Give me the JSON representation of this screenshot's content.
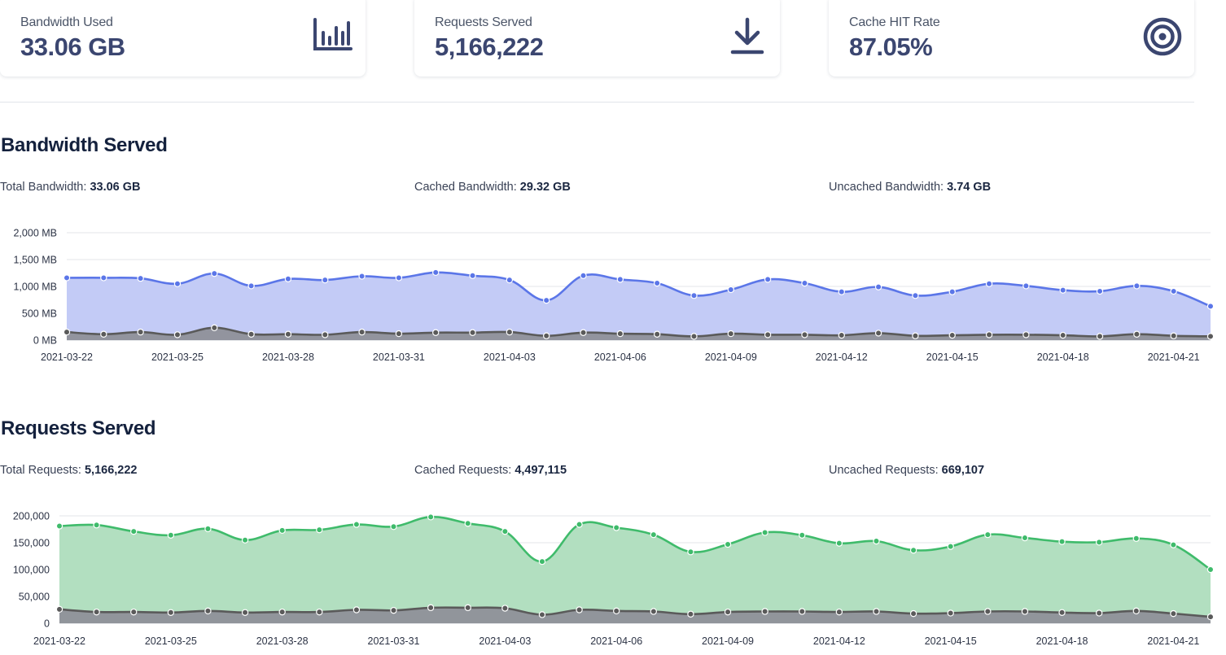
{
  "cards": [
    {
      "label": "Bandwidth Used",
      "value": "33.06 GB",
      "icon": "bar-chart-icon"
    },
    {
      "label": "Requests Served",
      "value": "5,166,222",
      "icon": "download-icon"
    },
    {
      "label": "Cache HIT Rate",
      "value": "87.05%",
      "icon": "target-icon"
    }
  ],
  "bandwidth": {
    "title": "Bandwidth Served",
    "total_label": "Total Bandwidth:",
    "total_value": "33.06 GB",
    "cached_label": "Cached Bandwidth:",
    "cached_value": "29.32 GB",
    "uncached_label": "Uncached Bandwidth:",
    "uncached_value": "3.74 GB"
  },
  "requests": {
    "title": "Requests Served",
    "total_label": "Total Requests:",
    "total_value": "5,166,222",
    "cached_label": "Cached Requests:",
    "cached_value": "4,497,115",
    "uncached_label": "Uncached Requests:",
    "uncached_value": "669,107"
  },
  "colors": {
    "bandwidth_line": "#5b76e8",
    "bandwidth_fill": "#c3cbf6",
    "requests_line": "#3fbb6b",
    "requests_fill": "#b2dfc0",
    "uncached_line": "#5a5a5a",
    "uncached_fill": "#8f9099"
  },
  "chart_data": [
    {
      "type": "area",
      "title": "Bandwidth Served",
      "unit": "MB",
      "x": [
        "2021-03-22",
        "2021-03-23",
        "2021-03-24",
        "2021-03-25",
        "2021-03-26",
        "2021-03-27",
        "2021-03-28",
        "2021-03-29",
        "2021-03-30",
        "2021-03-31",
        "2021-04-01",
        "2021-04-02",
        "2021-04-03",
        "2021-04-04",
        "2021-04-05",
        "2021-04-06",
        "2021-04-07",
        "2021-04-08",
        "2021-04-09",
        "2021-04-10",
        "2021-04-11",
        "2021-04-12",
        "2021-04-13",
        "2021-04-14",
        "2021-04-15",
        "2021-04-16",
        "2021-04-17",
        "2021-04-18",
        "2021-04-19",
        "2021-04-20",
        "2021-04-21",
        "2021-04-22"
      ],
      "xticks": [
        "2021-03-22",
        "2021-03-25",
        "2021-03-28",
        "2021-03-31",
        "2021-04-03",
        "2021-04-06",
        "2021-04-09",
        "2021-04-12",
        "2021-04-15",
        "2021-04-18",
        "2021-04-21"
      ],
      "yticks": [
        "0 MB",
        "500 MB",
        "1,000 MB",
        "1,500 MB",
        "2,000 MB"
      ],
      "ylim": [
        0,
        2000
      ],
      "series": [
        {
          "name": "Total",
          "values": [
            1160,
            1160,
            1150,
            1050,
            1240,
            1010,
            1140,
            1120,
            1190,
            1160,
            1260,
            1200,
            1120,
            740,
            1200,
            1130,
            1060,
            830,
            940,
            1130,
            1060,
            900,
            990,
            830,
            900,
            1050,
            1010,
            930,
            910,
            1010,
            910,
            630
          ]
        },
        {
          "name": "Uncached",
          "values": [
            150,
            110,
            150,
            100,
            230,
            110,
            110,
            100,
            150,
            120,
            140,
            140,
            150,
            80,
            140,
            120,
            110,
            70,
            120,
            100,
            100,
            90,
            130,
            80,
            90,
            100,
            100,
            90,
            70,
            110,
            80,
            70
          ]
        }
      ]
    },
    {
      "type": "area",
      "title": "Requests Served",
      "x": [
        "2021-03-22",
        "2021-03-23",
        "2021-03-24",
        "2021-03-25",
        "2021-03-26",
        "2021-03-27",
        "2021-03-28",
        "2021-03-29",
        "2021-03-30",
        "2021-03-31",
        "2021-04-01",
        "2021-04-02",
        "2021-04-03",
        "2021-04-04",
        "2021-04-05",
        "2021-04-06",
        "2021-04-07",
        "2021-04-08",
        "2021-04-09",
        "2021-04-10",
        "2021-04-11",
        "2021-04-12",
        "2021-04-13",
        "2021-04-14",
        "2021-04-15",
        "2021-04-16",
        "2021-04-17",
        "2021-04-18",
        "2021-04-19",
        "2021-04-20",
        "2021-04-21",
        "2021-04-22"
      ],
      "xticks": [
        "2021-03-22",
        "2021-03-25",
        "2021-03-28",
        "2021-03-31",
        "2021-04-03",
        "2021-04-06",
        "2021-04-09",
        "2021-04-12",
        "2021-04-15",
        "2021-04-18",
        "2021-04-21"
      ],
      "yticks": [
        "0",
        "50,000",
        "100,000",
        "150,000",
        "200,000"
      ],
      "ylim": [
        0,
        200000
      ],
      "series": [
        {
          "name": "Total",
          "values": [
            181000,
            183000,
            171000,
            164000,
            176000,
            155000,
            173000,
            174000,
            184000,
            180000,
            198000,
            186000,
            171000,
            115000,
            184000,
            178000,
            165000,
            133000,
            147000,
            169000,
            164000,
            149000,
            153000,
            136000,
            143000,
            165000,
            159000,
            152000,
            151000,
            158000,
            146000,
            100000
          ]
        },
        {
          "name": "Uncached",
          "values": [
            26000,
            21000,
            21000,
            20000,
            23000,
            20000,
            21000,
            21000,
            25000,
            24000,
            29000,
            29000,
            28000,
            16000,
            25000,
            23000,
            22000,
            17000,
            21000,
            22000,
            22000,
            21000,
            22000,
            18000,
            19000,
            22000,
            22000,
            20000,
            19000,
            23000,
            18000,
            12000
          ]
        }
      ]
    }
  ]
}
